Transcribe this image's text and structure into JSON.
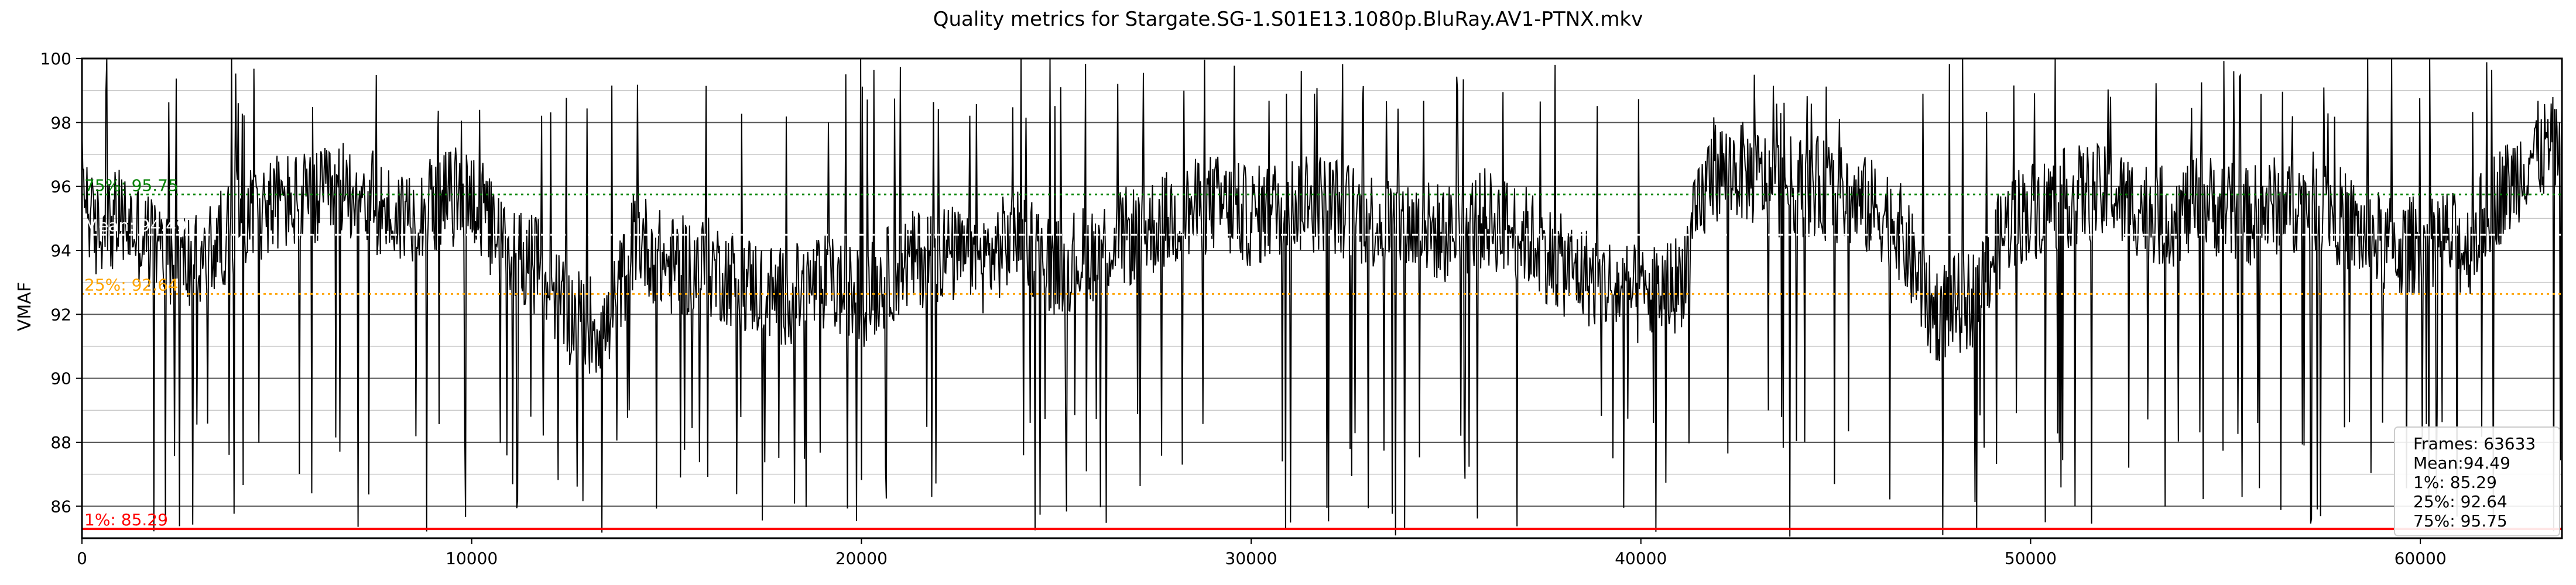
{
  "chart_data": {
    "type": "line",
    "title": "Quality metrics for Stargate.SG-1.S01E13.1080p.BluRay.AV1-PTNX.mkv",
    "xlabel": "",
    "ylabel": "VMAF",
    "xlim": [
      0,
      63633
    ],
    "ylim": [
      85,
      100
    ],
    "x_ticks": [
      0,
      10000,
      20000,
      30000,
      40000,
      50000,
      60000
    ],
    "y_ticks": [
      86,
      88,
      90,
      92,
      94,
      96,
      98,
      100
    ],
    "x_tick_labels": [
      "0",
      "10000",
      "20000",
      "30000",
      "40000",
      "50000",
      "60000"
    ],
    "y_tick_labels": [
      "86",
      "88",
      "90",
      "92",
      "94",
      "96",
      "98",
      "100"
    ],
    "grid": true,
    "series": [
      {
        "color": "#000000",
        "profile_x": [
          0,
          300,
          1000,
          2000,
          3000,
          4000,
          5000,
          6000,
          7000,
          8000,
          9000,
          10000,
          10800,
          11500,
          12500,
          13500,
          14200,
          15000,
          16000,
          17000,
          18000,
          19000,
          20000,
          21000,
          22000,
          23000,
          24000,
          25000,
          26000,
          27000,
          28000,
          29000,
          30000,
          31000,
          32000,
          33000,
          34000,
          35000,
          36000,
          37000,
          38000,
          39000,
          40000,
          41000,
          41800,
          42500,
          43500,
          44500,
          45500,
          46500,
          47500,
          48500,
          49500,
          50500,
          51500,
          52500,
          53500,
          54500,
          55500,
          56500,
          57500,
          58500,
          59500,
          60500,
          61200,
          61800,
          62300,
          62800,
          63633
        ],
        "profile_y": [
          96.5,
          94.5,
          95.0,
          94.0,
          93.5,
          95.0,
          95.5,
          95.5,
          96.0,
          95.0,
          95.5,
          95.8,
          94.0,
          93.8,
          92.0,
          91.5,
          94.5,
          93.5,
          93.5,
          93.0,
          92.5,
          93.0,
          92.5,
          93.5,
          94.0,
          93.5,
          94.5,
          93.5,
          94.0,
          94.5,
          95.0,
          95.5,
          95.0,
          95.5,
          95.5,
          95.0,
          94.8,
          94.5,
          95.0,
          94.5,
          93.5,
          93.0,
          92.5,
          93.0,
          96.5,
          96.5,
          96.0,
          96.0,
          95.5,
          95.0,
          92.0,
          92.5,
          95.0,
          95.5,
          95.8,
          95.5,
          95.0,
          95.5,
          95.0,
          95.5,
          95.5,
          94.5,
          94.0,
          94.5,
          94.0,
          95.5,
          96.0,
          97.0,
          97.3
        ]
      }
    ],
    "reference_lines": [
      {
        "name": "1%",
        "value": 85.29,
        "label": "1%: 85.29",
        "color": "#ff0000",
        "style": "solid"
      },
      {
        "name": "25%",
        "value": 92.64,
        "label": "25%: 92.64",
        "color": "#ffa500",
        "style": "dotted"
      },
      {
        "name": "Mean",
        "value": 94.49,
        "label": "Mean: 94.49",
        "color": "#ffffff",
        "style": "dashed"
      },
      {
        "name": "75%",
        "value": 95.75,
        "label": "75%: 95.75",
        "color": "#008000",
        "style": "dotted"
      }
    ],
    "legend": {
      "placement": "bottom-right",
      "lines": [
        "Frames: 63633",
        "Mean:94.49",
        "1%: 85.29",
        "25%: 92.64",
        "75%: 95.75"
      ]
    }
  }
}
